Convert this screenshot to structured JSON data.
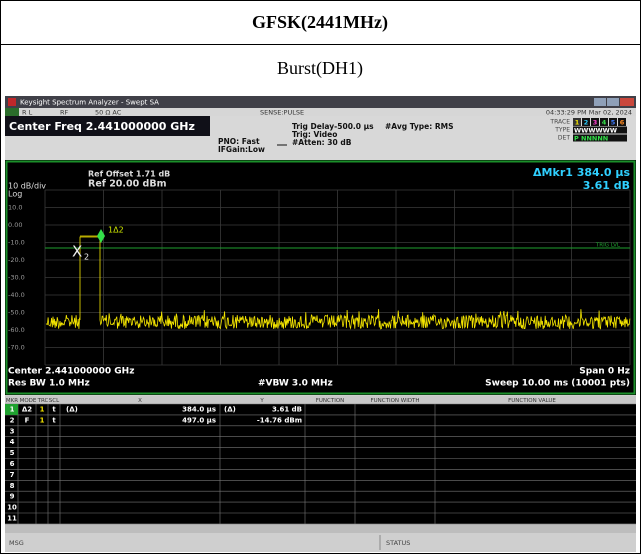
{
  "header": {
    "title": "GFSK(2441MHz)",
    "subtitle": "Burst(DH1)"
  },
  "analyzer": {
    "window_title": "Keysight Spectrum Analyzer - Swept SA",
    "status_bar": [
      "R L",
      "RF",
      "50 Ω  AC",
      "SENSE:PULSE",
      "04:33:29 PM Mar 02, 2024"
    ],
    "center_freq": "Center Freq 2.441000000 GHz",
    "settings": [
      "PNO: Fast",
      "IFGain:Low",
      "Trig Delay-500.0 µs",
      "Trig: Video",
      "#Atten: 30 dB",
      "#Avg Type: RMS"
    ],
    "trace_info": {
      "trace_label": "TRACE",
      "trace_numbers": [
        "1",
        "2",
        "3",
        "4",
        "5",
        "6"
      ],
      "type_label": "TYPE",
      "type": "WWWWWW",
      "det_label": "DET",
      "det": "P NNNNN"
    },
    "ref_offset": "Ref Offset 1.71 dB",
    "ref_level": "Ref 20.00 dBm",
    "scale": "10 dB/div",
    "scale_type": "Log",
    "delta_marker": "ΔMkr1 384.0 µs",
    "delta_value": "3.61 dB",
    "y_labels": [
      "10.0",
      "0.00",
      "-10.0",
      "-20.0",
      "-30.0",
      "-40.0",
      "-50.0",
      "-60.0",
      "-70.0"
    ],
    "trig_label": "TRIG LVL",
    "marker_x": "X",
    "marker_x_sub": "2",
    "marker_delta": "1Δ2",
    "footer": {
      "center": "Center 2.441000000 GHz",
      "res_bw": "Res BW 1.0 MHz",
      "vbw": "#VBW 3.0 MHz",
      "span": "Span 0 Hz",
      "sweep": "Sweep  10.00 ms (10001 pts)"
    },
    "marker_table": {
      "headers": [
        "MKR",
        "MODE",
        "TRC",
        "SCL",
        "X",
        "Y",
        "FUNCTION",
        "FUNCTION WIDTH",
        "FUNCTION VALUE"
      ],
      "rows": [
        {
          "mkr": "1",
          "mode": "Δ2",
          "trc": "1",
          "scl": "t",
          "x_ref": "(Δ)",
          "x": "384.0 µs",
          "y_ref": "(Δ)",
          "y": "3.61 dB"
        },
        {
          "mkr": "2",
          "mode": "F",
          "trc": "1",
          "scl": "t",
          "x": "497.0 µs",
          "y": "-14.76 dBm"
        }
      ],
      "row_numbers": [
        "3",
        "4",
        "5",
        "6",
        "7",
        "8",
        "9",
        "10",
        "11"
      ]
    },
    "status": {
      "msg": "MSG",
      "status": "STATUS"
    }
  }
}
